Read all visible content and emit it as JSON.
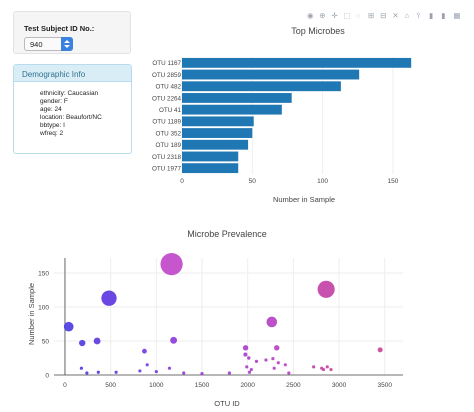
{
  "selector": {
    "label": "Test Subject ID No.:",
    "value": "940"
  },
  "demographics": {
    "heading": "Demographic Info",
    "items": [
      "ethnicity: Caucasian",
      "gender: F",
      "age: 24",
      "location: Beaufort/NC",
      "bbtype: I",
      "wfreq: 2"
    ]
  },
  "modebar": {
    "icons": [
      "camera-icon",
      "zoom-icon",
      "plus-icon",
      "box-select-icon",
      "lasso-icon",
      "zoom-in-icon",
      "zoom-out-icon",
      "autoscale-icon",
      "reset-axes-icon",
      "spike-lines-icon",
      "hover-closest-icon",
      "hover-compare-icon",
      "plotly-logo-icon"
    ],
    "glyphs": [
      "◉",
      "⊕",
      "✛",
      "⬚",
      "◌",
      "⊞",
      "⊟",
      "✕",
      "⌂",
      "⫯",
      "▮",
      "▮",
      "▦"
    ]
  },
  "chart_data": [
    {
      "type": "bar",
      "orientation": "horizontal",
      "title": "Top Microbes",
      "xlabel": "Number in Sample",
      "ylabel": "",
      "categories": [
        "OTU 1167",
        "OTU 2859",
        "OTU 482",
        "OTU 2264",
        "OTU 41",
        "OTU 1189",
        "OTU 352",
        "OTU 189",
        "OTU 2318",
        "OTU 1977"
      ],
      "values": [
        163,
        126,
        113,
        78,
        71,
        51,
        50,
        47,
        40,
        40
      ],
      "xlim": [
        0,
        165
      ],
      "xticks": [
        0,
        50,
        100,
        150
      ],
      "color": "#1f77b4",
      "grid": true
    },
    {
      "type": "scatter",
      "mode": "bubble",
      "title": "Microbe Prevalence",
      "xlabel": "OTU ID",
      "ylabel": "Number in Sample",
      "xlim": [
        -120,
        3700
      ],
      "ylim": [
        0,
        172
      ],
      "xticks": [
        0,
        500,
        1000,
        1500,
        2000,
        2500,
        3000,
        3500
      ],
      "yticks": [
        0,
        50,
        100,
        150
      ],
      "grid": true,
      "x": [
        1167,
        2859,
        482,
        41,
        2264,
        1189,
        352,
        189,
        2318,
        1977,
        3450,
        870,
        1975,
        2012,
        2096,
        2200,
        2276,
        2335,
        2412,
        2722,
        2810,
        2830,
        2871,
        2912,
        900,
        1000,
        1144,
        1500,
        1800,
        2040,
        1990,
        2290,
        2020,
        2450,
        180,
        240,
        365,
        560,
        820,
        1300
      ],
      "y": [
        163,
        126,
        113,
        71,
        78,
        51,
        50,
        47,
        40,
        40,
        37,
        35,
        30,
        25,
        20,
        22,
        24,
        18,
        15,
        12,
        10,
        8,
        12,
        8,
        15,
        5,
        10,
        2,
        3,
        8,
        12,
        10,
        4,
        3,
        10,
        3,
        4,
        4,
        6,
        3
      ],
      "colors": [
        "#c044c8",
        "#c23ea4",
        "#5a33e0",
        "#4a38e2",
        "#b53fc2",
        "#8c3ad8",
        "#5c35de",
        "#4a38e2",
        "#b53fc2",
        "#a83bcc",
        "#c8449a",
        "#6e38e0",
        "#a83bcc",
        "#aa3bc8",
        "#ae3cc6",
        "#b23dc4",
        "#b53fc2",
        "#b73ec0",
        "#b93ebf",
        "#c03ea8",
        "#c23ea4",
        "#c43fa2",
        "#c43fa2",
        "#c5409f",
        "#7038de",
        "#7a39dc",
        "#8c3ad8",
        "#9a3ad4",
        "#a23bd0",
        "#ac3bc8",
        "#a83bcc",
        "#b53fc2",
        "#aa3bc8",
        "#ba3ebc",
        "#4a38e2",
        "#4c38e2",
        "#5535e0",
        "#6236df",
        "#6e38de",
        "#943ad6"
      ]
    }
  ]
}
